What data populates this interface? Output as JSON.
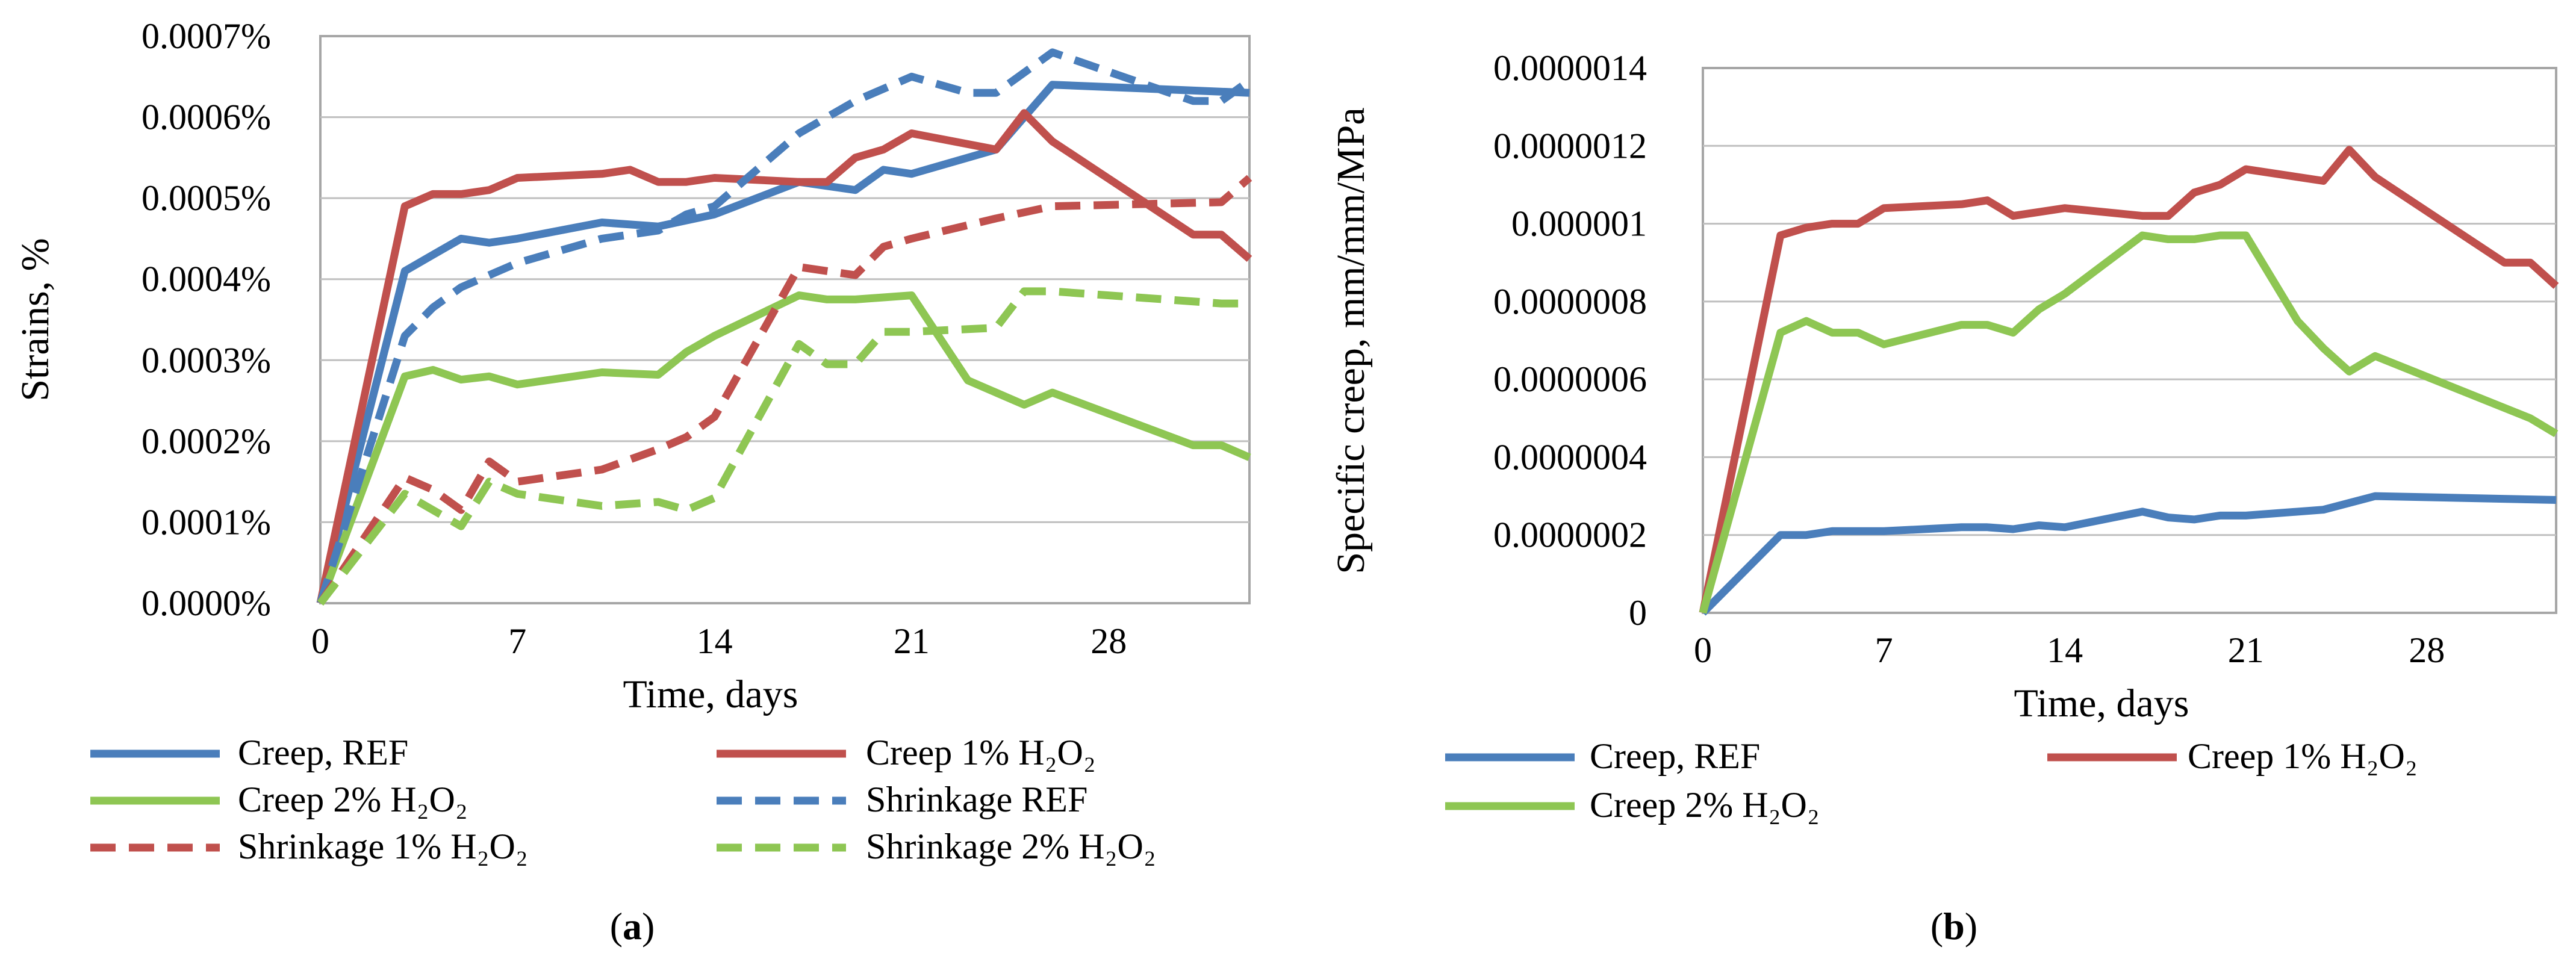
{
  "chart_data": [
    {
      "type": "line",
      "panel_label": {
        "open": "(",
        "letter": "a",
        "close": ")"
      },
      "xlabel": "Time, days",
      "ylabel": "Strains, %",
      "xlim": [
        0,
        33
      ],
      "ylim": [
        0,
        0.0007
      ],
      "x_ticks": [
        0,
        7,
        14,
        21,
        28
      ],
      "y_ticks": [
        0,
        0.0001,
        0.0002,
        0.0003,
        0.0004,
        0.0005,
        0.0006,
        0.0007
      ],
      "y_tick_labels": [
        "0.0000%",
        "0.0001%",
        "0.0002%",
        "0.0003%",
        "0.0004%",
        "0.0005%",
        "0.0006%",
        "0.0007%"
      ],
      "grid": "horizontal",
      "legend_position": "bottom",
      "series": [
        {
          "name": "Creep, REF",
          "color": "#4a7ebb",
          "dash": false,
          "x": [
            0,
            3,
            4,
            5,
            6,
            7,
            10,
            12,
            14,
            17,
            18,
            19,
            20,
            21,
            24,
            26,
            33
          ],
          "y": [
            0,
            0.00041,
            0.00043,
            0.00045,
            0.000445,
            0.00045,
            0.00047,
            0.000465,
            0.00048,
            0.00052,
            0.000515,
            0.00051,
            0.000535,
            0.00053,
            0.00056,
            0.00064,
            0.00063
          ]
        },
        {
          "name": "Creep 1% H₂O₂",
          "color": "#c0504d",
          "dash": false,
          "x": [
            0,
            3,
            4,
            5,
            6,
            7,
            10,
            11,
            12,
            13,
            14,
            17,
            18,
            19,
            20,
            21,
            24,
            25,
            26,
            31,
            32,
            33
          ],
          "y": [
            0,
            0.00049,
            0.000505,
            0.000505,
            0.00051,
            0.000525,
            0.00053,
            0.000535,
            0.00052,
            0.00052,
            0.000525,
            0.00052,
            0.00052,
            0.00055,
            0.00056,
            0.00058,
            0.00056,
            0.000605,
            0.00057,
            0.000455,
            0.000455,
            0.000425
          ]
        },
        {
          "name": "Creep 2% H₂O₂",
          "color": "#8ec653",
          "dash": false,
          "x": [
            0,
            3,
            4,
            5,
            6,
            7,
            10,
            12,
            13,
            14,
            17,
            18,
            19,
            21,
            23,
            25,
            26,
            31,
            32,
            33
          ],
          "y": [
            0,
            0.00028,
            0.000288,
            0.000276,
            0.00028,
            0.00027,
            0.000285,
            0.000282,
            0.00031,
            0.00033,
            0.00038,
            0.000375,
            0.000375,
            0.00038,
            0.000275,
            0.000245,
            0.00026,
            0.000195,
            0.000195,
            0.00018
          ]
        },
        {
          "name": "Shrinkage REF",
          "color": "#4a7ebb",
          "dash": true,
          "x": [
            0,
            3,
            4,
            5,
            7,
            10,
            12,
            13,
            14,
            17,
            18,
            19,
            21,
            23,
            24,
            26,
            31,
            32,
            33
          ],
          "y": [
            0,
            0.00033,
            0.000365,
            0.00039,
            0.00042,
            0.00045,
            0.00046,
            0.00048,
            0.00049,
            0.00058,
            0.0006,
            0.00062,
            0.00065,
            0.00063,
            0.00063,
            0.00068,
            0.00062,
            0.00062,
            0.000645
          ]
        },
        {
          "name": "Shrinkage  1% H₂O₂",
          "color": "#c0504d",
          "dash": true,
          "x": [
            0,
            3,
            4,
            5,
            6,
            7,
            10,
            12,
            13,
            14,
            17,
            18,
            19,
            20,
            21,
            24,
            26,
            32,
            33
          ],
          "y": [
            0,
            0.000155,
            0.00014,
            0.000115,
            0.000175,
            0.00015,
            0.000165,
            0.00019,
            0.000205,
            0.00023,
            0.000415,
            0.00041,
            0.000405,
            0.00044,
            0.00045,
            0.000475,
            0.00049,
            0.000495,
            0.000525
          ]
        },
        {
          "name": "Shrinkage  2% H₂O₂",
          "color": "#8ec653",
          "dash": true,
          "x": [
            0,
            3,
            4,
            5,
            6,
            7,
            10,
            12,
            13,
            14,
            17,
            18,
            19,
            20,
            21,
            24,
            25,
            26,
            32,
            33
          ],
          "y": [
            0,
            0.000135,
            0.000115,
            9.5e-05,
            0.00015,
            0.000135,
            0.00012,
            0.000125,
            0.000115,
            0.00013,
            0.00032,
            0.000295,
            0.000295,
            0.000335,
            0.000335,
            0.00034,
            0.000385,
            0.000385,
            0.00037,
            0.00037
          ]
        }
      ]
    },
    {
      "type": "line",
      "panel_label": {
        "open": "(",
        "letter": "b",
        "close": ")"
      },
      "xlabel": "Time, days",
      "ylabel": "Specific creep, mm/mm/MPa",
      "xlim": [
        0,
        33
      ],
      "ylim": [
        0,
        1.4e-06
      ],
      "x_ticks": [
        0,
        7,
        14,
        21,
        28
      ],
      "y_ticks": [
        0,
        2e-07,
        4e-07,
        6e-07,
        8e-07,
        1e-06,
        1.2e-06,
        1.4e-06
      ],
      "y_tick_labels": [
        "0",
        "0.0000002",
        "0.0000004",
        "0.0000006",
        "0.0000008",
        "0.000001",
        "0.0000012",
        "0.0000014"
      ],
      "grid": "horizontal",
      "legend_position": "bottom",
      "series": [
        {
          "name": "Creep, REF",
          "color": "#4a7ebb",
          "dash": false,
          "x": [
            0,
            3,
            4,
            5,
            6,
            7,
            10,
            11,
            12,
            13,
            14,
            17,
            18,
            19,
            20,
            21,
            24,
            26,
            33
          ],
          "y": [
            0,
            2e-07,
            2e-07,
            2.1e-07,
            2.1e-07,
            2.1e-07,
            2.2e-07,
            2.2e-07,
            2.15e-07,
            2.25e-07,
            2.2e-07,
            2.6e-07,
            2.45e-07,
            2.4e-07,
            2.5e-07,
            2.5e-07,
            2.65e-07,
            3e-07,
            2.9e-07
          ]
        },
        {
          "name": "Creep 1% H₂O₂",
          "color": "#c0504d",
          "dash": false,
          "x": [
            0,
            3,
            4,
            5,
            6,
            7,
            10,
            11,
            12,
            13,
            14,
            17,
            18,
            19,
            20,
            21,
            24,
            25,
            26,
            31,
            32,
            33
          ],
          "y": [
            0,
            9.7e-07,
            9.9e-07,
            1e-06,
            1e-06,
            1.04e-06,
            1.05e-06,
            1.06e-06,
            1.02e-06,
            1.03e-06,
            1.04e-06,
            1.02e-06,
            1.02e-06,
            1.08e-06,
            1.1e-06,
            1.14e-06,
            1.11e-06,
            1.19e-06,
            1.12e-06,
            9e-07,
            9e-07,
            8.4e-07
          ]
        },
        {
          "name": "Creep 2% H₂O₂",
          "color": "#8ec653",
          "dash": false,
          "x": [
            0,
            3,
            4,
            5,
            6,
            7,
            10,
            11,
            12,
            13,
            14,
            17,
            18,
            19,
            20,
            21,
            23,
            24,
            25,
            26,
            32,
            33
          ],
          "y": [
            0,
            7.2e-07,
            7.5e-07,
            7.2e-07,
            7.2e-07,
            6.9e-07,
            7.4e-07,
            7.4e-07,
            7.2e-07,
            7.8e-07,
            8.2e-07,
            9.7e-07,
            9.6e-07,
            9.6e-07,
            9.7e-07,
            9.7e-07,
            7.5e-07,
            6.8e-07,
            6.2e-07,
            6.6e-07,
            5e-07,
            4.6e-07
          ]
        }
      ]
    }
  ]
}
